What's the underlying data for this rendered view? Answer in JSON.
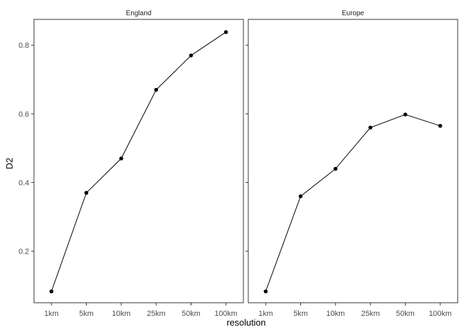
{
  "chart_data": {
    "type": "line",
    "categories": [
      "1km",
      "5km",
      "10km",
      "25km",
      "50km",
      "100km"
    ],
    "xlabel": "resolution",
    "ylabel": "D2",
    "ylim": [
      0.05,
      0.875
    ],
    "yticks": [
      0.2,
      0.4,
      0.6,
      0.8
    ],
    "ytick_labels": [
      "0.2",
      "0.4",
      "0.6",
      "0.8"
    ],
    "grid": false,
    "legend": "none",
    "facets": [
      {
        "label": "England",
        "values": [
          0.083,
          0.37,
          0.47,
          0.67,
          0.77,
          0.838
        ]
      },
      {
        "label": "Europe",
        "values": [
          0.083,
          0.36,
          0.44,
          0.56,
          0.598,
          0.565
        ]
      }
    ]
  }
}
